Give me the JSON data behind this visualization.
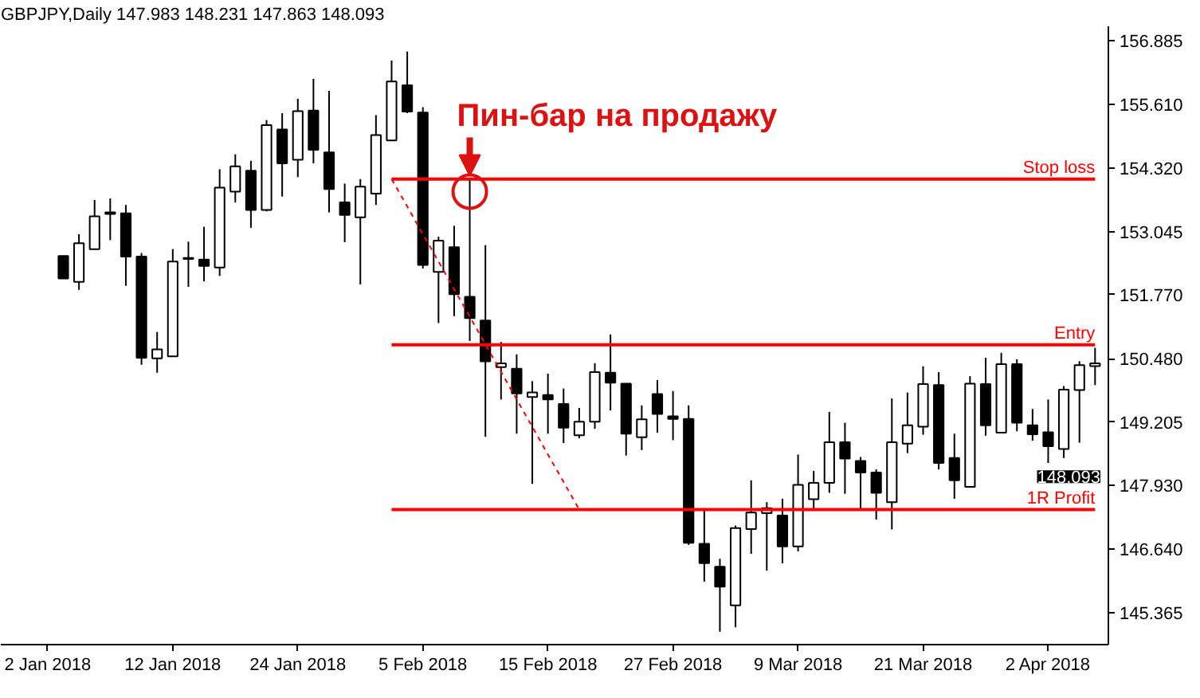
{
  "chart_data": {
    "type": "candlestick",
    "title": "GBPJPY,Daily 147.983 148.231 147.863 148.093",
    "categories": [
      "2 Jan 2018",
      null,
      null,
      null,
      null,
      null,
      null,
      null,
      "12 Jan 2018",
      null,
      null,
      null,
      null,
      null,
      null,
      null,
      "24 Jan 2018",
      null,
      null,
      null,
      null,
      null,
      null,
      null,
      "5 Feb 2018",
      null,
      null,
      null,
      null,
      null,
      null,
      null,
      "15 Feb 2018",
      null,
      null,
      null,
      null,
      null,
      null,
      null,
      "27 Feb 2018",
      null,
      null,
      null,
      null,
      null,
      null,
      null,
      "9 Mar 2018",
      null,
      null,
      null,
      null,
      null,
      null,
      null,
      "21 Mar 2018",
      null,
      null,
      null,
      null,
      null,
      null,
      null,
      "2 Apr 2018",
      null,
      null,
      null
    ],
    "ohlc": [
      null,
      [
        152.55,
        152.55,
        152.1,
        152.1
      ],
      [
        152.03,
        152.99,
        151.87,
        152.81
      ],
      [
        152.69,
        153.68,
        152.69,
        153.35
      ],
      [
        153.4,
        153.71,
        152.87,
        153.43
      ],
      [
        153.41,
        153.58,
        151.95,
        152.54
      ],
      [
        152.54,
        152.61,
        150.36,
        150.5
      ],
      [
        150.49,
        151.02,
        150.2,
        150.67
      ],
      [
        150.53,
        152.69,
        150.53,
        152.44
      ],
      [
        152.49,
        152.84,
        151.93,
        152.51
      ],
      [
        152.48,
        153.14,
        152.04,
        152.35
      ],
      [
        152.32,
        154.3,
        152.15,
        153.93
      ],
      [
        153.85,
        154.6,
        153.63,
        154.36
      ],
      [
        154.27,
        154.47,
        153.12,
        153.48
      ],
      [
        153.48,
        155.29,
        153.45,
        155.19
      ],
      [
        155.1,
        155.43,
        153.75,
        154.42
      ],
      [
        154.49,
        155.72,
        154.14,
        155.47
      ],
      [
        155.48,
        156.12,
        154.42,
        154.69
      ],
      [
        154.64,
        155.88,
        153.43,
        153.9
      ],
      [
        153.63,
        154.01,
        152.83,
        153.38
      ],
      [
        153.33,
        154.1,
        151.98,
        153.95
      ],
      [
        153.81,
        155.39,
        153.58,
        154.99
      ],
      [
        154.88,
        156.49,
        154.88,
        156.07
      ],
      [
        155.99,
        156.67,
        155.43,
        155.46
      ],
      [
        155.44,
        155.55,
        152.3,
        152.37
      ],
      [
        152.23,
        152.94,
        151.2,
        152.86
      ],
      [
        152.73,
        153.16,
        151.34,
        151.78
      ],
      [
        151.73,
        154.12,
        150.84,
        151.3
      ],
      [
        151.25,
        152.77,
        148.91,
        150.43
      ],
      [
        150.31,
        150.82,
        149.66,
        150.39
      ],
      [
        150.28,
        150.57,
        148.97,
        149.78
      ],
      [
        149.71,
        150.03,
        147.96,
        149.8
      ],
      [
        149.75,
        150.18,
        148.97,
        149.66
      ],
      [
        149.57,
        149.88,
        148.78,
        149.09
      ],
      [
        148.94,
        149.49,
        148.88,
        149.21
      ],
      [
        149.21,
        150.39,
        149.07,
        150.21
      ],
      [
        150.2,
        150.97,
        149.44,
        150.0
      ],
      [
        149.98,
        149.98,
        148.53,
        148.97
      ],
      [
        148.9,
        149.54,
        148.64,
        149.26
      ],
      [
        149.77,
        150.05,
        148.99,
        149.37
      ],
      [
        149.32,
        149.83,
        148.84,
        149.27
      ],
      [
        149.27,
        149.54,
        146.73,
        146.77
      ],
      [
        146.75,
        147.47,
        145.99,
        146.36
      ],
      [
        146.29,
        146.45,
        144.98,
        145.89
      ],
      [
        145.51,
        147.12,
        145.07,
        147.07
      ],
      [
        147.05,
        148.03,
        146.55,
        147.38
      ],
      [
        147.37,
        147.59,
        146.21,
        147.47
      ],
      [
        147.32,
        147.66,
        146.36,
        146.7
      ],
      [
        146.7,
        148.55,
        146.6,
        147.94
      ],
      [
        147.65,
        148.22,
        147.42,
        147.98
      ],
      [
        147.98,
        149.41,
        147.78,
        148.8
      ],
      [
        148.8,
        149.19,
        147.76,
        148.47
      ],
      [
        148.42,
        148.5,
        147.45,
        148.19
      ],
      [
        148.19,
        148.25,
        147.24,
        147.78
      ],
      [
        147.59,
        149.68,
        147.04,
        148.8
      ],
      [
        148.77,
        149.8,
        148.58,
        149.14
      ],
      [
        149.11,
        150.33,
        148.95,
        149.97
      ],
      [
        149.95,
        150.21,
        148.25,
        148.38
      ],
      [
        148.48,
        148.97,
        147.66,
        148.03
      ],
      [
        147.9,
        150.13,
        147.88,
        149.98
      ],
      [
        149.97,
        150.5,
        148.93,
        149.14
      ],
      [
        148.99,
        150.6,
        148.99,
        150.37
      ],
      [
        150.37,
        150.47,
        149.02,
        149.19
      ],
      [
        149.14,
        149.47,
        148.83,
        148.96
      ],
      [
        149.0,
        149.66,
        148.38,
        148.72
      ],
      [
        148.66,
        149.93,
        148.48,
        149.86
      ],
      [
        149.85,
        150.43,
        148.79,
        150.35
      ],
      [
        150.33,
        150.7,
        149.95,
        150.39
      ]
    ],
    "colors": [
      null,
      "#000000",
      "#ffffff",
      "#ffffff",
      "#ffffff",
      "#000000",
      "#000000",
      "#ffffff",
      "#ffffff",
      "#ffffff",
      "#000000",
      "#ffffff",
      "#ffffff",
      "#000000",
      "#ffffff",
      "#000000",
      "#ffffff",
      "#000000",
      "#000000",
      "#000000",
      "#ffffff",
      "#ffffff",
      "#ffffff",
      "#000000",
      "#000000",
      "#ffffff",
      "#000000",
      "#000000",
      "#000000",
      "#ffffff",
      "#000000",
      "#ffffff",
      "#000000",
      "#000000",
      "#ffffff",
      "#ffffff",
      "#000000",
      "#000000",
      "#ffffff",
      "#000000",
      "#000000",
      "#000000",
      "#000000",
      "#000000",
      "#ffffff",
      "#ffffff",
      "#ffffff",
      "#000000",
      "#ffffff",
      "#ffffff",
      "#ffffff",
      "#000000",
      "#000000",
      "#000000",
      "#ffffff",
      "#ffffff",
      "#ffffff",
      "#000000",
      "#000000",
      "#ffffff",
      "#000000",
      "#ffffff",
      "#000000",
      "#000000",
      "#000000",
      "#ffffff",
      "#ffffff",
      "#ffffff"
    ],
    "series": [
      {
        "type": "line",
        "color": "#ff0000",
        "line_style": "dashed",
        "values": [
          null,
          null,
          null,
          null,
          null,
          null,
          null,
          null,
          null,
          null,
          null,
          null,
          null,
          null,
          null,
          null,
          null,
          null,
          null,
          null,
          null,
          null,
          154.1,
          153.55,
          152.99,
          152.44,
          151.88,
          151.33,
          150.77,
          150.22,
          149.66,
          149.11,
          148.55,
          148.0,
          147.44,
          null,
          null,
          null,
          null,
          null,
          null,
          null,
          null,
          null,
          null,
          null,
          null,
          null,
          null,
          null,
          null,
          null,
          null,
          null,
          null,
          null,
          null,
          null,
          null,
          null,
          null,
          null,
          null,
          null,
          null,
          null,
          null,
          null
        ]
      },
      {
        "type": "line",
        "name": "Stop loss",
        "color": "#ff0000",
        "values": [
          null,
          null,
          null,
          null,
          null,
          null,
          null,
          null,
          null,
          null,
          null,
          null,
          null,
          null,
          null,
          null,
          null,
          null,
          null,
          null,
          null,
          null,
          154.1,
          154.1,
          154.1,
          154.1,
          154.1,
          154.1,
          154.1,
          154.1,
          154.1,
          154.1,
          154.1,
          154.1,
          154.1,
          154.1,
          154.1,
          154.1,
          154.1,
          154.1,
          154.1,
          154.1,
          154.1,
          154.1,
          154.1,
          154.1,
          154.1,
          154.1,
          154.1,
          154.1,
          154.1,
          154.1,
          154.1,
          154.1,
          154.1,
          154.1,
          154.1,
          154.1,
          154.1,
          154.1,
          154.1,
          154.1,
          154.1,
          154.1,
          154.1,
          154.1,
          154.1,
          154.1
        ]
      },
      {
        "type": "line",
        "name": "Entry",
        "color": "#ff0000",
        "values": [
          null,
          null,
          null,
          null,
          null,
          null,
          null,
          null,
          null,
          null,
          null,
          null,
          null,
          null,
          null,
          null,
          null,
          null,
          null,
          null,
          null,
          null,
          150.76,
          150.76,
          150.76,
          150.76,
          150.76,
          150.76,
          150.76,
          150.76,
          150.76,
          150.76,
          150.76,
          150.76,
          150.76,
          150.76,
          150.76,
          150.76,
          150.76,
          150.76,
          150.76,
          150.76,
          150.76,
          150.76,
          150.76,
          150.76,
          150.76,
          150.76,
          150.76,
          150.76,
          150.76,
          150.76,
          150.76,
          150.76,
          150.76,
          150.76,
          150.76,
          150.76,
          150.76,
          150.76,
          150.76,
          150.76,
          150.76,
          150.76,
          150.76,
          150.76,
          150.76,
          150.76
        ]
      },
      {
        "type": "line",
        "name": "1R Profit",
        "color": "#ff0000",
        "values": [
          null,
          null,
          null,
          null,
          null,
          null,
          null,
          null,
          null,
          null,
          null,
          null,
          null,
          null,
          null,
          null,
          null,
          null,
          null,
          null,
          null,
          null,
          147.44,
          147.44,
          147.44,
          147.44,
          147.44,
          147.44,
          147.44,
          147.44,
          147.44,
          147.44,
          147.44,
          147.44,
          147.44,
          147.44,
          147.44,
          147.44,
          147.44,
          147.44,
          147.44,
          147.44,
          147.44,
          147.44,
          147.44,
          147.44,
          147.44,
          147.44,
          147.44,
          147.44,
          147.44,
          147.44,
          147.44,
          147.44,
          147.44,
          147.44,
          147.44,
          147.44,
          147.44,
          147.44,
          147.44,
          147.44,
          147.44,
          147.44,
          147.44,
          147.44,
          147.44,
          147.44
        ]
      },
      {
        "type": "scatter",
        "marker": "circle",
        "color": "#dd1111",
        "values": [
          null,
          null,
          null,
          null,
          null,
          null,
          null,
          null,
          null,
          null,
          null,
          null,
          null,
          null,
          null,
          null,
          null,
          null,
          null,
          null,
          null,
          null,
          null,
          null,
          null,
          null,
          null,
          153.85,
          null,
          null,
          null,
          null,
          null,
          null,
          null,
          null,
          null,
          null,
          null,
          null,
          null,
          null,
          null,
          null,
          null,
          null,
          null,
          null,
          null,
          null,
          null,
          null,
          null,
          null,
          null,
          null,
          null,
          null,
          null,
          null,
          null,
          null,
          null,
          null,
          null,
          null,
          null,
          null
        ]
      }
    ],
    "ylim": [
      144.72,
      157.18
    ],
    "yticks": [
      156.885,
      {
        "value": 155.61,
        "label": "155.610"
      },
      {
        "value": 154.32,
        "label": "154.320"
      },
      153.045,
      {
        "value": 151.77,
        "label": "151.770"
      },
      {
        "value": 150.48,
        "label": "150.480"
      },
      149.205,
      {
        "value": 147.93,
        "label": "147.930"
      },
      {
        "value": 146.64,
        "label": "146.640"
      },
      145.365
    ],
    "annotations": [
      {
        "text": "Пин-бар на продажу",
        "y": 154.17
      },
      "148.093"
    ]
  }
}
